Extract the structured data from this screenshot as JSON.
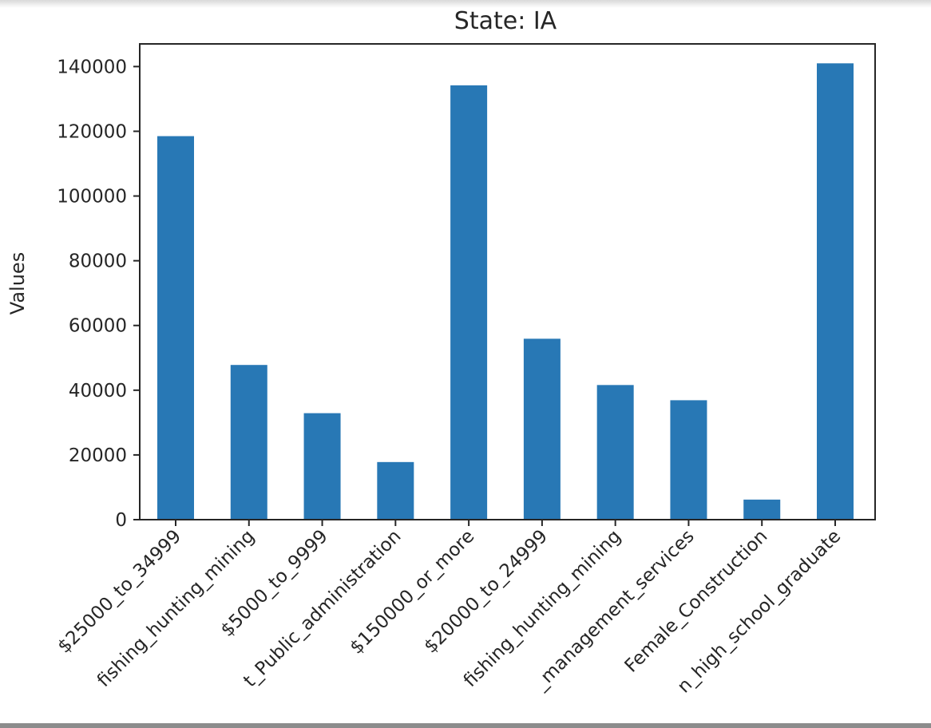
{
  "chart_data": {
    "type": "bar",
    "title": "State: IA",
    "xlabel": "",
    "ylabel": "Values",
    "ylim": [
      0,
      147000
    ],
    "yticks": [
      0,
      20000,
      40000,
      60000,
      80000,
      100000,
      120000,
      140000
    ],
    "bar_color": "#2878b5",
    "grid": false,
    "legend": "none",
    "categories": [
      "$25000_to_34999",
      "fishing_hunting_mining",
      "$5000_to_9999",
      "t_Public_administration",
      "$150000_or_more",
      "$20000_to_24999",
      "fishing_hunting_mining",
      "_management_services",
      "Female_Construction",
      "n_high_school_graduate"
    ],
    "values": [
      118500,
      47800,
      32900,
      17800,
      134200,
      55900,
      41600,
      36900,
      6200,
      141000
    ]
  }
}
